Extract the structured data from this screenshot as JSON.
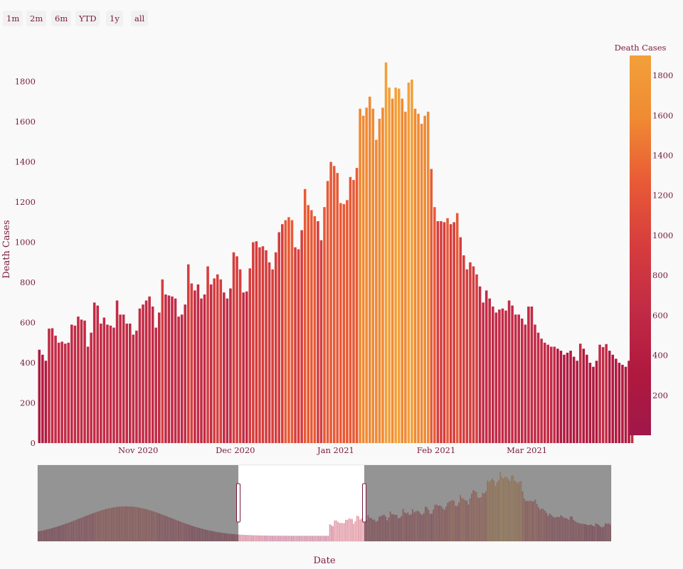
{
  "range_selector": {
    "buttons": [
      "1m",
      "2m",
      "6m",
      "YTD",
      "1y",
      "all"
    ]
  },
  "colorbar": {
    "title": "Death Cases",
    "ticks": [
      200,
      400,
      600,
      800,
      1000,
      1200,
      1400,
      1600,
      1800
    ],
    "min": 0,
    "max": 1900,
    "colors": [
      "#a0174a",
      "#b0193f",
      "#c22b45",
      "#d63d3d",
      "#e85a36",
      "#f08a33",
      "#f2a03a"
    ]
  },
  "chart_data": {
    "type": "bar",
    "title": "",
    "xlabel": "Date",
    "ylabel": "Death Cases",
    "ylim": [
      0,
      1930
    ],
    "yticks": [
      0,
      200,
      400,
      600,
      800,
      1000,
      1200,
      1400,
      1600,
      1800
    ],
    "xrange": [
      "2020-10-01",
      "2021-03-27"
    ],
    "xticks": [
      {
        "date": "2020-11-01",
        "label": "Nov 2020"
      },
      {
        "date": "2020-12-01",
        "label": "Dec 2020"
      },
      {
        "date": "2021-01-01",
        "label": "Jan 2021"
      },
      {
        "date": "2021-02-01",
        "label": "Feb 2021"
      },
      {
        "date": "2021-03-01",
        "label": "Mar 2021"
      }
    ],
    "grid": false,
    "start_date": "2020-10-01",
    "values": [
      465,
      440,
      410,
      570,
      572,
      535,
      500,
      505,
      495,
      500,
      590,
      585,
      630,
      615,
      610,
      480,
      550,
      700,
      685,
      595,
      625,
      590,
      585,
      575,
      710,
      640,
      640,
      595,
      595,
      540,
      560,
      670,
      690,
      710,
      730,
      680,
      575,
      650,
      815,
      740,
      735,
      730,
      720,
      630,
      640,
      690,
      890,
      795,
      760,
      790,
      720,
      740,
      880,
      790,
      820,
      840,
      815,
      750,
      720,
      770,
      950,
      930,
      865,
      750,
      755,
      870,
      1000,
      1005,
      975,
      980,
      960,
      900,
      865,
      950,
      1050,
      1090,
      1110,
      1125,
      1110,
      975,
      965,
      1060,
      1265,
      1185,
      1160,
      1130,
      1105,
      1010,
      1175,
      1305,
      1400,
      1380,
      1345,
      1195,
      1190,
      1210,
      1325,
      1310,
      1370,
      1665,
      1630,
      1670,
      1725,
      1665,
      1510,
      1615,
      1670,
      1895,
      1770,
      1715,
      1770,
      1765,
      1715,
      1650,
      1795,
      1810,
      1665,
      1640,
      1590,
      1630,
      1650,
      1365,
      1175,
      1105,
      1105,
      1100,
      1120,
      1090,
      1100,
      1145,
      1025,
      935,
      865,
      900,
      880,
      840,
      780,
      700,
      760,
      720,
      680,
      650,
      665,
      670,
      660,
      710,
      685,
      640,
      640,
      620,
      590,
      680,
      680,
      590,
      550,
      520,
      500,
      490,
      480,
      480,
      470,
      460,
      440,
      450,
      460,
      430,
      410,
      495,
      470,
      440,
      400,
      380,
      410,
      490,
      478,
      493,
      460,
      440,
      420,
      400,
      390,
      380,
      410,
      490
    ]
  },
  "navigator": {
    "start_date": "2020-04-01",
    "selected_from": "2020-10-01",
    "selected_to": "2021-03-27"
  }
}
